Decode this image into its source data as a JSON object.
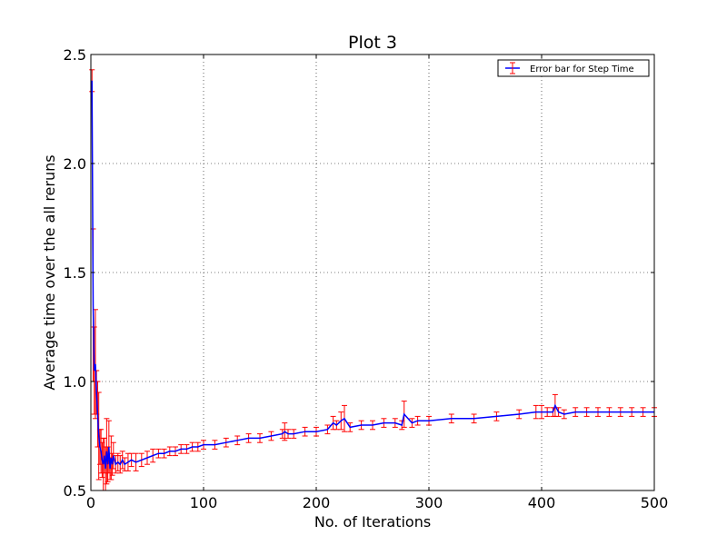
{
  "chart_data": {
    "type": "line",
    "title": "Plot 3",
    "xlabel": "No. of Iterations",
    "ylabel": "Average time over the all reruns",
    "xlim": [
      0,
      500
    ],
    "ylim": [
      0.5,
      2.5
    ],
    "xticks": [
      0,
      100,
      200,
      300,
      400,
      500
    ],
    "xtick_labels": [
      "0",
      "100",
      "200",
      "300",
      "400",
      "500"
    ],
    "yticks": [
      0.5,
      1.0,
      1.5,
      2.0,
      2.5
    ],
    "ytick_labels": [
      "0.5",
      "1.0",
      "1.5",
      "2.0",
      "2.5"
    ],
    "grid": true,
    "legend": {
      "placement": "top-right",
      "entries": [
        "Error bar for Step Time"
      ]
    },
    "series": [
      {
        "name": "Error bar for Step Time",
        "line_color": "#0000ff",
        "errorbar_color": "#ff0000",
        "x": [
          1,
          2,
          3,
          4,
          5,
          6,
          7,
          8,
          9,
          10,
          11,
          12,
          13,
          14,
          15,
          16,
          17,
          18,
          19,
          20,
          22,
          24,
          26,
          28,
          30,
          33,
          36,
          40,
          45,
          50,
          55,
          60,
          65,
          70,
          75,
          80,
          85,
          90,
          95,
          100,
          110,
          120,
          130,
          140,
          150,
          160,
          170,
          172,
          175,
          180,
          190,
          200,
          210,
          215,
          218,
          222,
          225,
          230,
          240,
          250,
          260,
          270,
          276,
          278,
          285,
          290,
          300,
          320,
          340,
          360,
          380,
          395,
          400,
          405,
          410,
          412,
          415,
          420,
          430,
          440,
          450,
          460,
          470,
          480,
          490,
          500
        ],
        "y": [
          2.38,
          1.35,
          1.05,
          1.08,
          0.95,
          0.85,
          0.75,
          0.7,
          0.68,
          0.64,
          0.62,
          0.66,
          0.6,
          0.68,
          0.62,
          0.7,
          0.6,
          0.65,
          0.62,
          0.66,
          0.62,
          0.63,
          0.62,
          0.64,
          0.62,
          0.63,
          0.64,
          0.63,
          0.64,
          0.65,
          0.66,
          0.67,
          0.67,
          0.68,
          0.68,
          0.69,
          0.69,
          0.7,
          0.7,
          0.71,
          0.71,
          0.72,
          0.73,
          0.74,
          0.74,
          0.75,
          0.76,
          0.77,
          0.76,
          0.76,
          0.77,
          0.77,
          0.78,
          0.81,
          0.8,
          0.82,
          0.83,
          0.79,
          0.8,
          0.8,
          0.81,
          0.81,
          0.8,
          0.85,
          0.81,
          0.82,
          0.82,
          0.83,
          0.83,
          0.84,
          0.85,
          0.86,
          0.86,
          0.86,
          0.86,
          0.89,
          0.86,
          0.85,
          0.86,
          0.86,
          0.86,
          0.86,
          0.86,
          0.86,
          0.86,
          0.86
        ],
        "err": [
          0.05,
          0.35,
          0.2,
          0.25,
          0.1,
          0.15,
          0.2,
          0.08,
          0.1,
          0.08,
          0.12,
          0.08,
          0.1,
          0.15,
          0.08,
          0.12,
          0.05,
          0.1,
          0.05,
          0.06,
          0.04,
          0.04,
          0.04,
          0.04,
          0.03,
          0.04,
          0.03,
          0.04,
          0.03,
          0.03,
          0.03,
          0.02,
          0.02,
          0.02,
          0.02,
          0.02,
          0.02,
          0.02,
          0.02,
          0.02,
          0.02,
          0.02,
          0.02,
          0.02,
          0.02,
          0.02,
          0.02,
          0.04,
          0.02,
          0.02,
          0.02,
          0.02,
          0.02,
          0.03,
          0.02,
          0.04,
          0.06,
          0.02,
          0.02,
          0.02,
          0.02,
          0.02,
          0.02,
          0.06,
          0.02,
          0.02,
          0.02,
          0.02,
          0.02,
          0.02,
          0.02,
          0.03,
          0.03,
          0.02,
          0.02,
          0.05,
          0.02,
          0.02,
          0.02,
          0.02,
          0.02,
          0.02,
          0.02,
          0.02,
          0.02,
          0.02
        ]
      }
    ]
  }
}
